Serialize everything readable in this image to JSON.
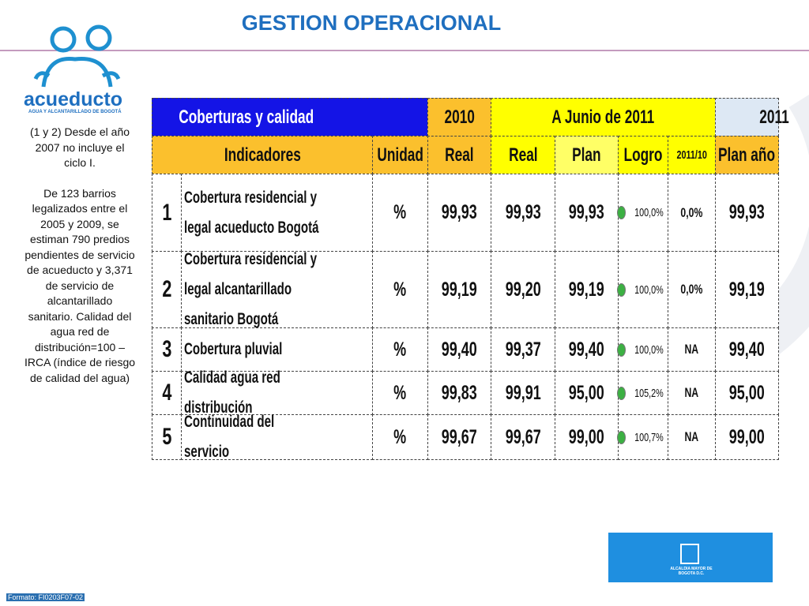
{
  "header": {
    "title": "GESTION OPERACIONAL"
  },
  "logo": {
    "name": "acueducto",
    "tagline": "AGUA Y ALCANTARILLADO DE BOGOTÁ"
  },
  "notes": [
    "(1 y 2) Desde el año 2007 no incluye el ciclo I.",
    "De 123 barrios legalizados entre el 2005 y 2009, se estiman 790 predios pendientes de servicio de acueducto y 3,371 de servicio de alcantarillado sanitario. Calidad del agua red de distribución=100 – IRCA (índice de riesgo de calidad del agua)"
  ],
  "table": {
    "group_headers": [
      "Coberturas y calidad",
      "2010",
      "A Junio de 2011",
      "2011"
    ],
    "headers": [
      "Indicadores",
      "Unidad",
      "Real",
      "Real",
      "Plan",
      "Logro",
      "2011/10",
      "Plan año"
    ],
    "rows": [
      [
        "1",
        "Cobertura residencial y legal acueducto Bogotá",
        "%",
        "99,93",
        "99,93",
        "99,93",
        "100,0%",
        "0,0%",
        "99,93"
      ],
      [
        "2",
        "Cobertura residencial y legal alcantarillado sanitario Bogotá",
        "%",
        "99,19",
        "99,20",
        "99,19",
        "100,0%",
        "0,0%",
        "99,19"
      ],
      [
        "3",
        "Cobertura pluvial",
        "%",
        "99,40",
        "99,37",
        "99,40",
        "100,0%",
        "NA",
        "99,40"
      ],
      [
        "4",
        "Calidad agua red distribución",
        "%",
        "99,83",
        "99,91",
        "95,00",
        "105,2%",
        "NA",
        "95,00"
      ],
      [
        "5",
        "Continuidad del servicio",
        "%",
        "99,67",
        "99,67",
        "99,00",
        "100,7%",
        "NA",
        "99,00"
      ]
    ]
  },
  "footer": "Formato: FI0203F07-02",
  "badge": "ALCALDIA MAYOR DE BOGOTA D.C."
}
